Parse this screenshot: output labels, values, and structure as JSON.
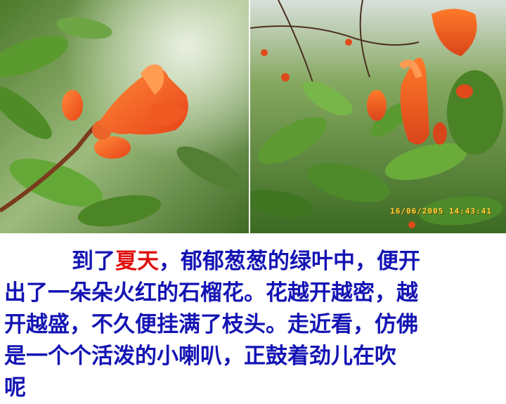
{
  "photos": {
    "left": {
      "subject": "pomegranate flower close-up"
    },
    "right": {
      "subject": "pomegranate tree with flowers",
      "timestamp": "16/06/2005 14:43:41"
    }
  },
  "text": {
    "line1_pre": "到了",
    "line1_highlight": "夏天",
    "line1_post": "，郁郁葱葱的绿叶中，便开",
    "line2": "出了一朵朵火红的石榴花。花越开越密，越",
    "line3": "开越盛，不久便挂满了枝头。走近看，仿佛",
    "line4": "是一个个活泼的小喇叭，正鼓着劲儿在吹",
    "line5": "呢"
  },
  "colors": {
    "text": "#1414b4",
    "highlight": "#e01010",
    "timestamp": "#ffd23a"
  }
}
